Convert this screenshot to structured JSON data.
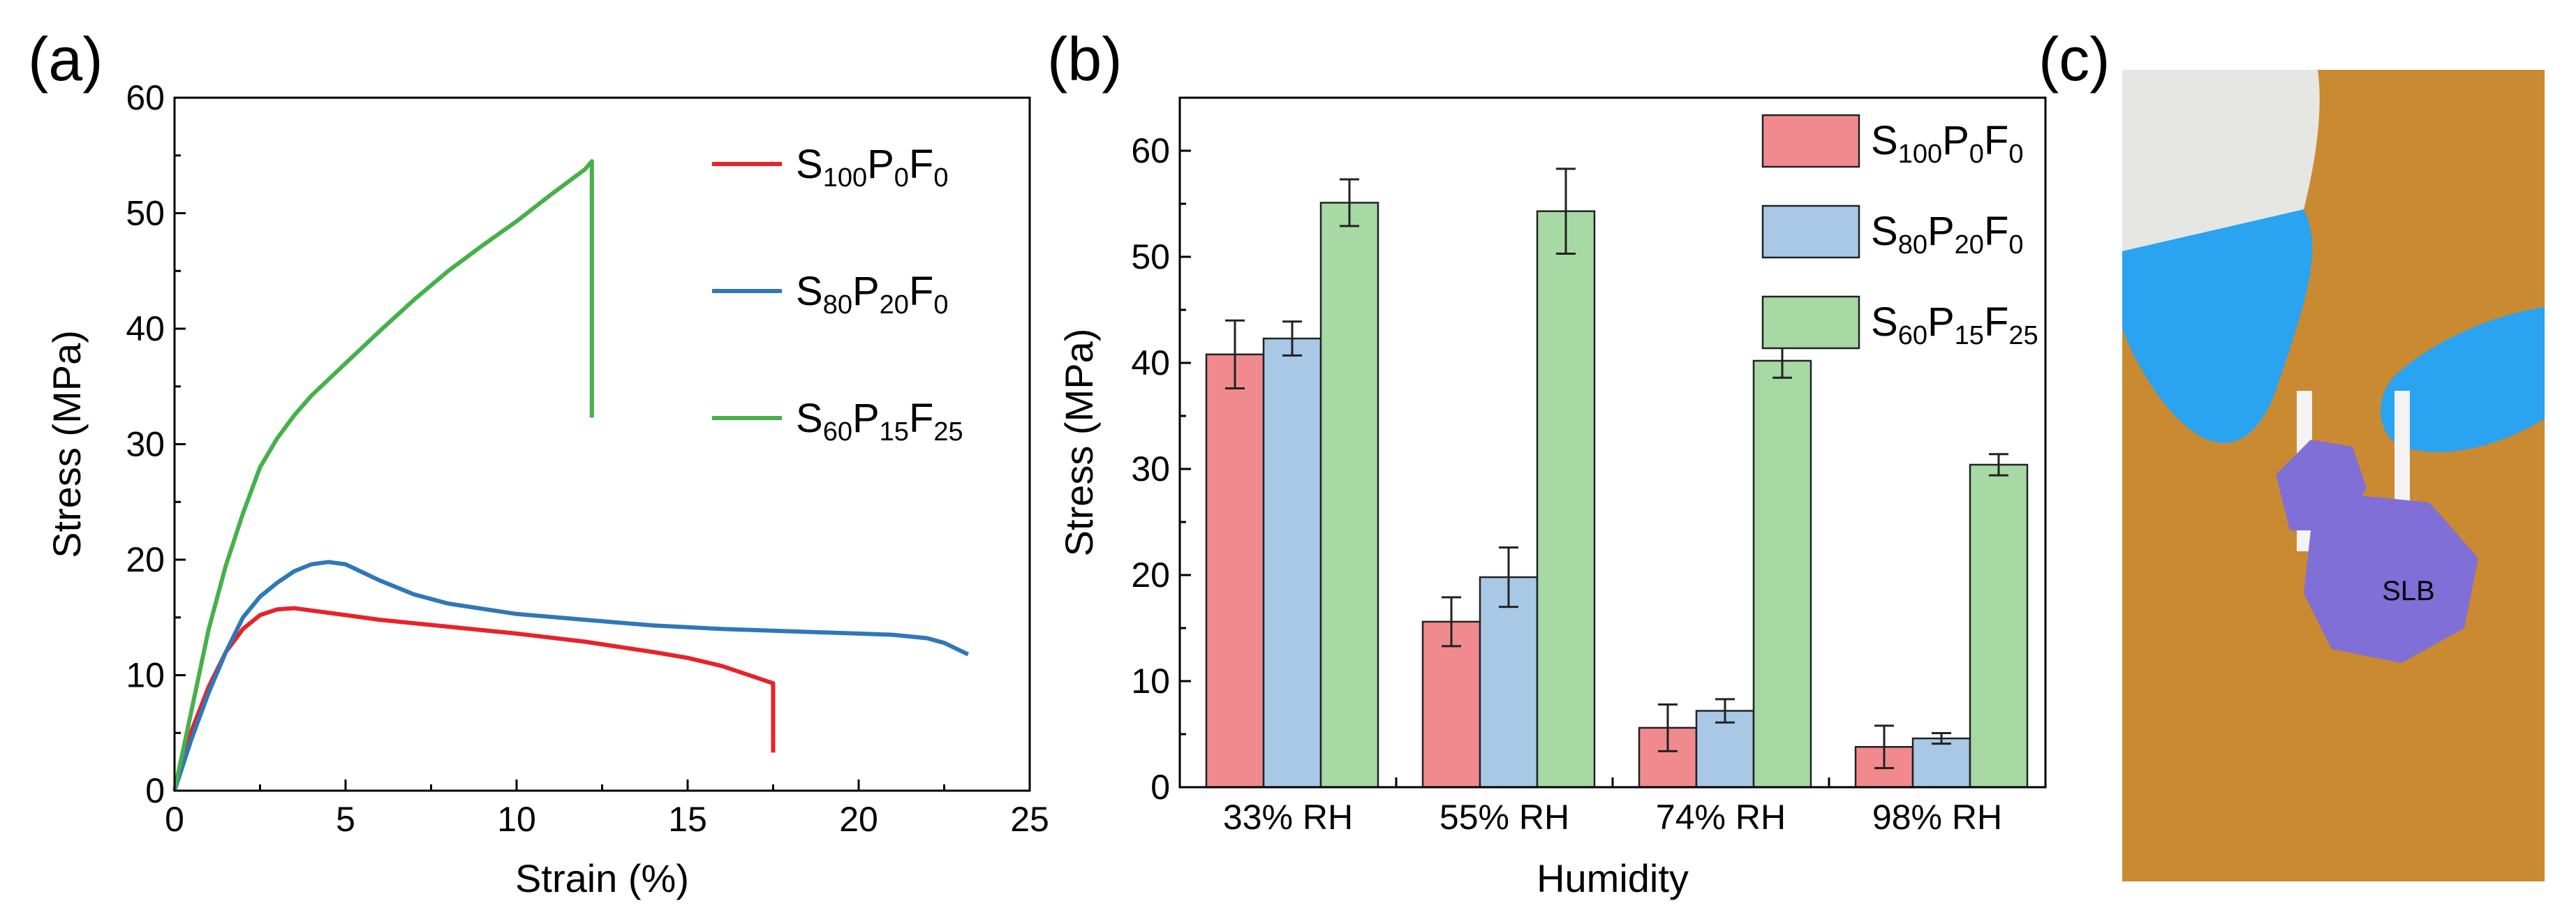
{
  "panels": {
    "a": "(a)",
    "b": "(b)",
    "c": "(c)"
  },
  "photo": {
    "weight_text": "SLB",
    "colors": {
      "table": "#c98a32",
      "glove": "#2aa3f0",
      "dumbbell": "#7f6fd6",
      "sleeve": "#e6e6e2"
    }
  },
  "chart_data": [
    {
      "type": "line",
      "xlabel": "Strain (%)",
      "ylabel": "Stress (MPa)",
      "xlim": [
        0,
        25
      ],
      "ylim": [
        0,
        60
      ],
      "xticks": [
        "0",
        "5",
        "10",
        "15",
        "20",
        "25"
      ],
      "yticks": [
        "0",
        "10",
        "20",
        "30",
        "40",
        "50",
        "60"
      ],
      "grid": false,
      "legend_position": "top-right",
      "series": [
        {
          "name": "S100P0F0",
          "legend": {
            "base": "S",
            "s1": "100",
            "m1": "P",
            "s2": "0",
            "m2": "F",
            "s3": "0"
          },
          "color": "#e8222a",
          "x": [
            0,
            0.5,
            1,
            1.5,
            2,
            2.5,
            3,
            3.5,
            4,
            5,
            6,
            8,
            10,
            12,
            14,
            15,
            16,
            17,
            17.5,
            17.5
          ],
          "y": [
            0,
            5.2,
            9,
            12,
            14,
            15.2,
            15.7,
            15.8,
            15.6,
            15.2,
            14.8,
            14.2,
            13.6,
            12.9,
            12.0,
            11.5,
            10.8,
            9.8,
            9.3,
            3.3
          ]
        },
        {
          "name": "S80P20F0",
          "legend": {
            "base": "S",
            "s1": "80",
            "m1": "P",
            "s2": "20",
            "m2": "F",
            "s3": "0"
          },
          "color": "#2f78b8",
          "x": [
            0,
            0.5,
            1,
            1.5,
            2,
            2.5,
            3,
            3.5,
            4,
            4.5,
            5,
            6,
            7,
            8,
            10,
            12,
            14,
            16,
            18,
            20,
            21,
            22,
            22.5,
            23.2
          ],
          "y": [
            0,
            4.5,
            8.5,
            12,
            15,
            16.8,
            18,
            19,
            19.6,
            19.8,
            19.6,
            18.2,
            17,
            16.2,
            15.3,
            14.8,
            14.3,
            14.0,
            13.8,
            13.6,
            13.5,
            13.2,
            12.8,
            11.8
          ]
        },
        {
          "name": "S60P15F25",
          "legend": {
            "base": "S",
            "s1": "60",
            "m1": "P",
            "s2": "15",
            "m2": "F",
            "s3": "25"
          },
          "color": "#46b04a",
          "x": [
            0,
            0.5,
            1,
            1.5,
            2,
            2.5,
            3,
            3.5,
            4,
            5,
            6,
            7,
            8,
            9,
            10,
            11,
            12,
            12.2,
            12.2
          ],
          "y": [
            0,
            7,
            14,
            19.5,
            24,
            28,
            30.5,
            32.5,
            34.2,
            37,
            39.8,
            42.5,
            45,
            47.2,
            49.3,
            51.6,
            53.8,
            54.5,
            32.3
          ]
        }
      ]
    },
    {
      "type": "bar",
      "xlabel": "Humidity",
      "ylabel": "Stress (MPa)",
      "categories": [
        "33% RH",
        "55% RH",
        "74% RH",
        "98% RH"
      ],
      "ylim": [
        0,
        65
      ],
      "yticks": [
        "0",
        "10",
        "20",
        "30",
        "40",
        "50",
        "60"
      ],
      "grid": false,
      "legend_position": "top-right",
      "series": [
        {
          "name": "S100P0F0",
          "legend": {
            "base": "S",
            "s1": "100",
            "m1": "P",
            "s2": "0",
            "m2": "F",
            "s3": "0"
          },
          "color": "#f08a8e",
          "values": [
            40.8,
            15.6,
            5.6,
            3.8
          ],
          "errors": [
            3.2,
            2.3,
            2.2,
            2.0
          ]
        },
        {
          "name": "S80P20F0",
          "legend": {
            "base": "S",
            "s1": "80",
            "m1": "P",
            "s2": "20",
            "m2": "F",
            "s3": "0"
          },
          "color": "#a8c8e6",
          "values": [
            42.3,
            19.8,
            7.2,
            4.6
          ],
          "errors": [
            1.6,
            2.8,
            1.1,
            0.5
          ]
        },
        {
          "name": "S60P15F25",
          "legend": {
            "base": "S",
            "s1": "60",
            "m1": "P",
            "s2": "15",
            "m2": "F",
            "s3": "25"
          },
          "color": "#a6d9a4",
          "values": [
            55.1,
            54.3,
            40.2,
            30.4
          ],
          "errors": [
            2.2,
            4.0,
            1.6,
            1.0
          ]
        }
      ]
    }
  ]
}
